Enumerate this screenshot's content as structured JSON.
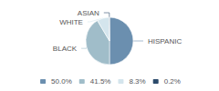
{
  "chart_data": {
    "type": "pie",
    "categories": [
      "HISPANIC",
      "BLACK",
      "WHITE",
      "ASIAN"
    ],
    "values": [
      50.0,
      41.5,
      8.3,
      0.2
    ],
    "value_labels": [
      "50.0%",
      "41.5%",
      "8.3%",
      "0.2%"
    ],
    "colors": [
      "#6b8faf",
      "#a0bdc9",
      "#d4e5ed",
      "#2c4b6b"
    ],
    "legend": "bottom"
  }
}
